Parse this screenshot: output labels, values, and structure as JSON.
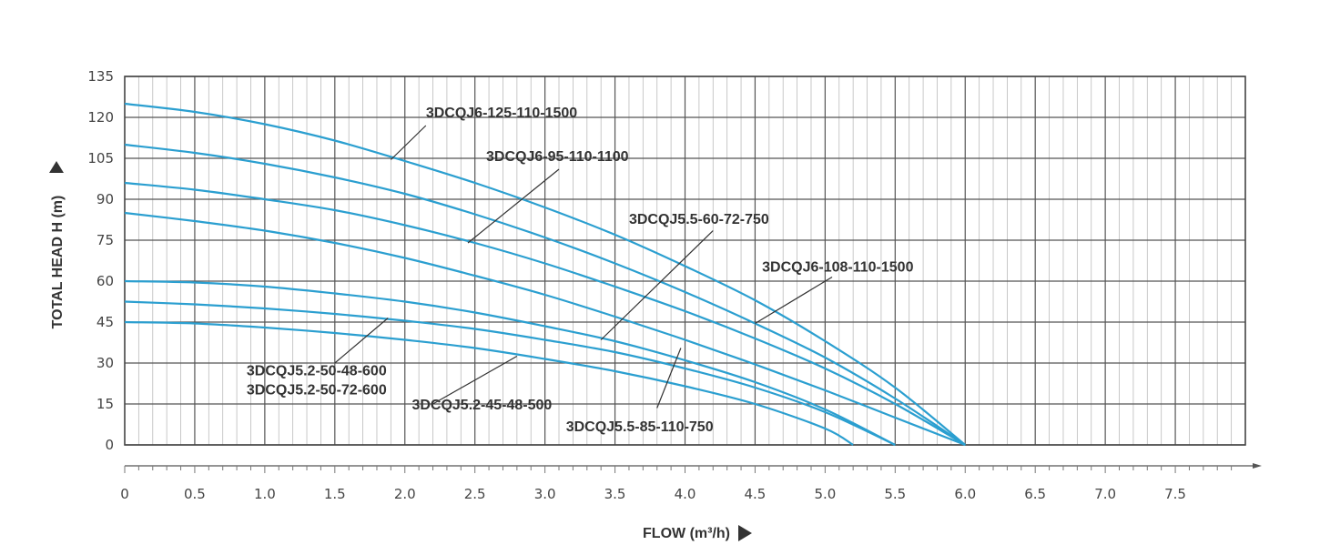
{
  "chart_data": {
    "type": "line",
    "title": "",
    "xlabel": "FLOW (m³/h)",
    "ylabel": "TOTAL HEAD H (m)",
    "xlim": [
      0,
      8
    ],
    "ylim": [
      0,
      135
    ],
    "x_ticks": [
      0,
      0.5,
      1.0,
      1.5,
      2.0,
      2.5,
      3.0,
      3.5,
      4.0,
      4.5,
      5.0,
      5.5,
      6.0,
      6.5,
      7.0,
      7.5
    ],
    "x_tick_labels": [
      "0",
      "0.5",
      "1.0",
      "1.5",
      "2.0",
      "2.5",
      "3.0",
      "3.5",
      "4.0",
      "4.5",
      "5.0",
      "5.5",
      "6.0",
      "6.5",
      "7.0",
      "7.5"
    ],
    "y_ticks": [
      0,
      15,
      30,
      45,
      60,
      75,
      90,
      105,
      120,
      135
    ],
    "y_tick_labels": [
      "0",
      "15",
      "30",
      "45",
      "60",
      "75",
      "90",
      "105",
      "120",
      "135"
    ],
    "grid": true,
    "colors": {
      "curve": "#2b9fd0",
      "grid_major": "#555555",
      "grid_minor": "#bbbbbb",
      "text": "#333333",
      "leader": "#333333"
    },
    "series": [
      {
        "name": "3DCQJ6-125-110-1500",
        "x": [
          0,
          0.5,
          1.0,
          1.5,
          2.0,
          2.5,
          3.0,
          3.5,
          4.0,
          4.5,
          5.0,
          5.5,
          6.0
        ],
        "values": [
          125,
          122,
          117.5,
          111.5,
          104,
          96,
          87,
          77,
          65.5,
          53,
          38,
          21,
          0
        ]
      },
      {
        "name": "3DCQJ6-95-110-1100",
        "x": [
          0,
          0.5,
          1.0,
          1.5,
          2.0,
          2.5,
          3.0,
          3.5,
          4.0,
          4.5,
          5.0,
          5.5,
          6.0
        ],
        "values": [
          110,
          107,
          103,
          98,
          92,
          84.5,
          76,
          66.5,
          56,
          44.5,
          32,
          17,
          0
        ]
      },
      {
        "name": "3DCQJ6-108-110-1500",
        "x": [
          0,
          0.5,
          1.0,
          1.5,
          2.0,
          2.5,
          3.0,
          3.5,
          4.0,
          4.5,
          5.0,
          5.5,
          6.0
        ],
        "values": [
          96,
          93.5,
          90,
          86,
          80.5,
          74,
          66.5,
          58,
          49,
          39,
          28,
          15,
          0
        ]
      },
      {
        "name": "3DCQJ5.5-60-72-750",
        "x": [
          0,
          0.5,
          1.0,
          1.5,
          2.0,
          2.5,
          3.0,
          3.5,
          4.0,
          4.5,
          5.0,
          5.5,
          6.0
        ],
        "values": [
          85,
          82,
          78.5,
          74,
          68.5,
          62,
          55,
          47,
          38.5,
          29.5,
          20,
          10,
          0
        ]
      },
      {
        "name": "3DCQJ5.2-50-72-600",
        "x": [
          0,
          0.5,
          1.0,
          1.5,
          2.0,
          2.5,
          3.0,
          3.5,
          4.0,
          4.5,
          5.0,
          5.5
        ],
        "values": [
          60,
          59.5,
          58,
          55.5,
          52.5,
          48.5,
          43.5,
          38,
          31,
          23,
          13,
          0
        ]
      },
      {
        "name": "3DCQJ5.2-50-48-600",
        "x": [
          0,
          0.5,
          1.0,
          1.5,
          2.0,
          2.5,
          3.0,
          3.5,
          4.0,
          4.5,
          5.0,
          5.5
        ],
        "values": [
          52.5,
          51.5,
          50,
          48,
          45.5,
          42.5,
          38.5,
          34,
          28,
          21,
          12,
          0
        ]
      },
      {
        "name": "3DCQJ5.2-45-48-500",
        "x": [
          0,
          0.5,
          1.0,
          1.5,
          2.0,
          2.5,
          3.0,
          3.5,
          4.0,
          4.5,
          5.0,
          5.2
        ],
        "values": [
          45,
          44.5,
          43,
          41,
          38.5,
          35.5,
          31.5,
          27,
          21.5,
          15,
          6,
          0
        ]
      }
    ],
    "annotations": [
      {
        "text": "3DCQJ6-125-110-1500",
        "anchor": "start",
        "label_x": 2.15,
        "label_y": 120,
        "line_from": [
          2.15,
          117
        ],
        "line_to": [
          1.9,
          104.5
        ]
      },
      {
        "text": "3DCQJ6-95-110-1100",
        "anchor": "start",
        "label_x": 2.58,
        "label_y": 104,
        "line_from": [
          3.1,
          101
        ],
        "line_to": [
          2.45,
          74
        ]
      },
      {
        "text": "3DCQJ5.5-60-72-750",
        "anchor": "start",
        "label_x": 3.6,
        "label_y": 81,
        "line_from": [
          4.2,
          78.5
        ],
        "line_to": [
          3.4,
          38.5
        ]
      },
      {
        "text": "3DCQJ6-108-110-1500",
        "anchor": "start",
        "label_x": 4.55,
        "label_y": 63.5,
        "line_from": [
          5.05,
          61.5
        ],
        "line_to": [
          4.5,
          44.5
        ]
      },
      {
        "text": "3DCQJ5.2-50-48-600",
        "anchor": "start",
        "label_x": 0.87,
        "label_y": 25.5,
        "line_from": [
          1.5,
          30
        ],
        "line_to": [
          1.88,
          46.5
        ]
      },
      {
        "text": "3DCQJ5.2-50-72-600",
        "anchor": "start",
        "label_x": 0.87,
        "label_y": 18.5,
        "line_from": null,
        "line_to": null
      },
      {
        "text": "3DCQJ5.2-45-48-500",
        "anchor": "start",
        "label_x": 2.05,
        "label_y": 13,
        "line_from": [
          2.2,
          15
        ],
        "line_to": [
          2.8,
          32.5
        ]
      },
      {
        "text": "3DCQJ5.5-85-110-750",
        "anchor": "start",
        "label_x": 3.15,
        "label_y": 5,
        "line_from": [
          3.8,
          13.5
        ],
        "line_to": [
          3.97,
          35.5
        ]
      }
    ]
  }
}
